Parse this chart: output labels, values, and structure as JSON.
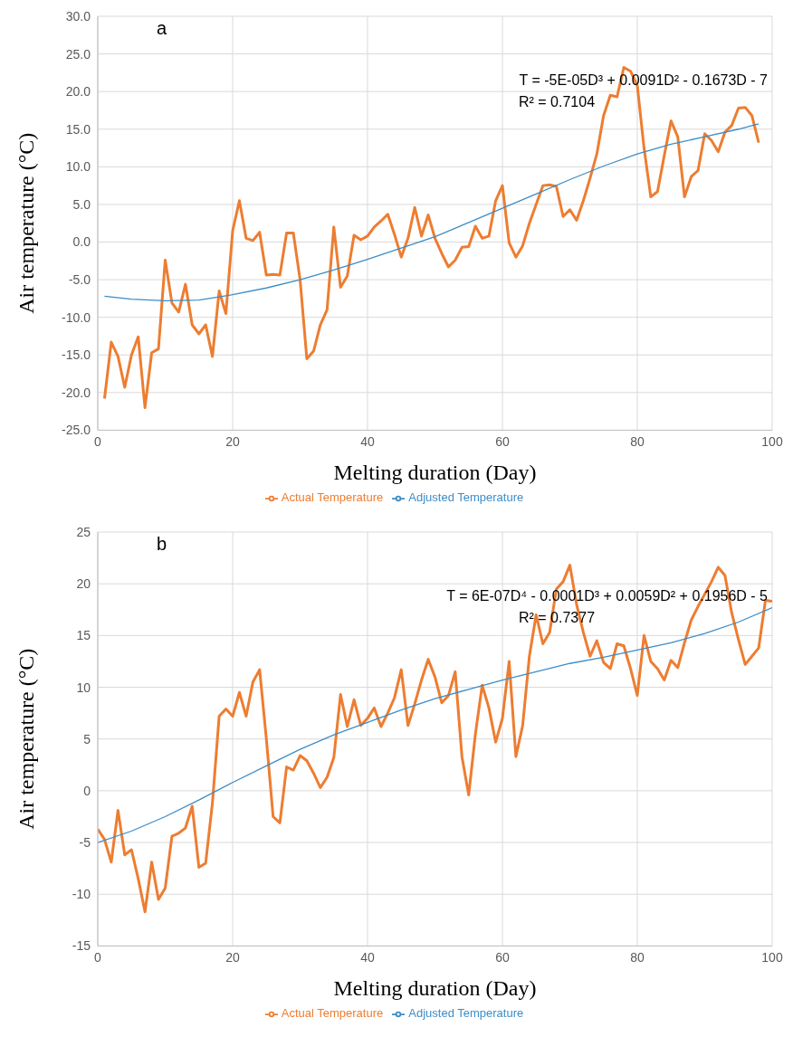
{
  "chart_data": [
    {
      "type": "line",
      "xlabel": "Melting duration (Day)",
      "ylabel": "Air temperature (°C)",
      "annotations": [
        "a",
        "T = -5E-05D³ + 0.0091D² - 0.1673D - 7",
        "R² = 0.7104"
      ],
      "xlim": [
        0,
        100
      ],
      "xticks": [
        0,
        20,
        40,
        60,
        80,
        100
      ],
      "ylim": [
        -25,
        30
      ],
      "yticks": [
        {
          "value": -25,
          "label": "-25.0"
        },
        {
          "value": -20,
          "label": "-20.0"
        },
        {
          "value": -15,
          "label": "-15.0"
        },
        {
          "value": -10,
          "label": "-10.0"
        },
        {
          "value": -5,
          "label": "-5.0"
        },
        {
          "value": 0,
          "label": "0.0"
        },
        {
          "value": 5,
          "label": "5.0"
        },
        {
          "value": 10,
          "label": "10.0"
        },
        {
          "value": 15,
          "label": "15.0"
        },
        {
          "value": 20,
          "label": "20.0"
        },
        {
          "value": 25,
          "label": "25.0"
        },
        {
          "value": 30,
          "label": "30.0"
        }
      ],
      "grid": true,
      "legend": "bottom",
      "marker": "none",
      "line_style": "solid",
      "series": [
        {
          "name": "Actual Temperature",
          "color": "#ed7d31",
          "x": [
            1,
            2,
            3,
            4,
            5,
            6,
            7,
            8,
            9,
            10,
            11,
            12,
            13,
            14,
            15,
            16,
            17,
            18,
            19,
            20,
            21,
            22,
            23,
            24,
            25,
            26,
            27,
            28,
            29,
            30,
            31,
            32,
            33,
            34,
            35,
            36,
            37,
            38,
            39,
            40,
            41,
            42,
            43,
            44,
            45,
            46,
            47,
            48,
            49,
            50,
            51,
            52,
            53,
            54,
            55,
            56,
            57,
            58,
            59,
            60,
            61,
            62,
            63,
            64,
            65,
            66,
            67,
            68,
            69,
            70,
            71,
            72,
            73,
            74,
            75,
            76,
            77,
            78,
            79,
            80,
            81,
            82,
            83,
            84,
            85,
            86,
            87,
            88,
            89,
            90,
            91,
            92,
            93,
            94,
            95,
            96,
            97,
            98
          ],
          "values": [
            -20.8,
            -13.3,
            -15.2,
            -19.3,
            -15.0,
            -12.6,
            -22.0,
            -14.7,
            -14.2,
            -2.4,
            -8.1,
            -9.3,
            -5.6,
            -11.0,
            -12.2,
            -11.0,
            -15.2,
            -6.5,
            -9.5,
            1.5,
            5.5,
            0.5,
            0.2,
            1.3,
            -4.4,
            -4.3,
            -4.4,
            1.2,
            1.2,
            -5.0,
            -15.5,
            -14.5,
            -11.0,
            -9.0,
            2.0,
            -6.0,
            -4.5,
            0.9,
            0.3,
            0.8,
            2.0,
            2.8,
            3.7,
            1.0,
            -2.0,
            0.5,
            4.6,
            0.8,
            3.6,
            0.5,
            -1.5,
            -3.3,
            -2.4,
            -0.7,
            -0.6,
            2.1,
            0.5,
            0.8,
            5.5,
            7.5,
            -0.1,
            -2.0,
            -0.5,
            2.5,
            5.0,
            7.5,
            7.6,
            7.4,
            3.4,
            4.3,
            2.9,
            5.5,
            8.5,
            11.7,
            16.8,
            19.5,
            19.3,
            23.2,
            22.7,
            20.8,
            12.5,
            6.0,
            6.7,
            11.5,
            16.1,
            14.0,
            6.0,
            8.7,
            9.5,
            14.4,
            13.5,
            12.0,
            14.6,
            15.5,
            17.8,
            17.9,
            16.8,
            13.2
          ]
        },
        {
          "name": "Adjusted Temperature",
          "color": "#3c8dc8",
          "x": [
            1,
            5,
            10,
            15,
            20,
            25,
            30,
            35,
            40,
            45,
            50,
            55,
            60,
            65,
            70,
            75,
            80,
            85,
            90,
            95,
            98
          ],
          "values": [
            -7.2,
            -7.6,
            -7.8,
            -7.7,
            -7.0,
            -6.1,
            -5.0,
            -3.7,
            -2.3,
            -0.8,
            0.7,
            2.6,
            4.5,
            6.4,
            8.3,
            10.1,
            11.7,
            13.0,
            14.0,
            15.0,
            15.7
          ]
        }
      ]
    },
    {
      "type": "line",
      "xlabel": "Melting duration (Day)",
      "ylabel": "Air temperature (°C)",
      "annotations": [
        "b",
        "T = 6E-07D⁴ - 0.0001D³ + 0.0059D² + 0.1956D - 5",
        "R² = 0.7377"
      ],
      "xlim": [
        0,
        100
      ],
      "xticks": [
        0,
        20,
        40,
        60,
        80,
        100
      ],
      "ylim": [
        -15,
        25
      ],
      "yticks": [
        -15,
        -10,
        -5,
        0,
        5,
        10,
        15,
        20,
        25
      ],
      "grid": true,
      "legend": "bottom",
      "marker": "none",
      "line_style": "solid",
      "series": [
        {
          "name": "Actual Temperature",
          "color": "#ed7d31",
          "x": [
            0,
            1,
            2,
            3,
            4,
            5,
            6,
            7,
            8,
            9,
            10,
            11,
            12,
            13,
            14,
            15,
            16,
            17,
            18,
            19,
            20,
            21,
            22,
            23,
            24,
            25,
            26,
            27,
            28,
            29,
            30,
            31,
            32,
            33,
            34,
            35,
            36,
            37,
            38,
            39,
            40,
            41,
            42,
            43,
            44,
            45,
            46,
            47,
            48,
            49,
            50,
            51,
            52,
            53,
            54,
            55,
            56,
            57,
            58,
            59,
            60,
            61,
            62,
            63,
            64,
            65,
            66,
            67,
            68,
            69,
            70,
            71,
            72,
            73,
            74,
            75,
            76,
            77,
            78,
            79,
            80,
            81,
            82,
            83,
            84,
            85,
            86,
            87,
            88,
            89,
            90,
            91,
            92,
            93,
            94,
            95,
            96,
            97,
            98,
            99,
            100
          ],
          "values": [
            -3.7,
            -4.7,
            -6.9,
            -1.9,
            -6.2,
            -5.7,
            -8.5,
            -11.7,
            -6.9,
            -10.5,
            -9.4,
            -4.4,
            -4.1,
            -3.6,
            -1.5,
            -7.4,
            -7.0,
            -1.2,
            7.2,
            7.9,
            7.2,
            9.5,
            7.2,
            10.5,
            11.7,
            5.0,
            -2.5,
            -3.1,
            2.3,
            2.0,
            3.4,
            2.9,
            1.7,
            0.3,
            1.3,
            3.2,
            9.3,
            6.2,
            8.8,
            6.3,
            7.0,
            8.0,
            6.2,
            7.5,
            9.0,
            11.7,
            6.3,
            8.4,
            10.7,
            12.7,
            11.0,
            8.5,
            9.2,
            11.5,
            3.3,
            -0.4,
            5.5,
            10.2,
            8.0,
            4.7,
            7.0,
            12.5,
            3.3,
            6.3,
            13.0,
            17.0,
            14.2,
            15.3,
            19.5,
            20.2,
            21.8,
            18.0,
            15.3,
            13.0,
            14.5,
            12.4,
            11.8,
            14.2,
            14.0,
            11.8,
            9.2,
            15.0,
            12.5,
            11.8,
            10.7,
            12.6,
            11.9,
            14.3,
            16.5,
            17.8,
            19.0,
            20.2,
            21.6,
            20.8,
            17.2,
            14.6,
            12.2,
            13.0,
            13.8,
            18.4,
            18.3
          ]
        },
        {
          "name": "Adjusted Temperature",
          "color": "#3c8dc8",
          "x": [
            0,
            5,
            10,
            15,
            20,
            25,
            30,
            35,
            40,
            45,
            50,
            55,
            60,
            65,
            70,
            75,
            80,
            85,
            90,
            95,
            100
          ],
          "values": [
            -5.0,
            -3.9,
            -2.5,
            -0.9,
            0.8,
            2.4,
            4.0,
            5.4,
            6.6,
            7.8,
            8.9,
            9.8,
            10.7,
            11.5,
            12.3,
            12.9,
            13.6,
            14.3,
            15.2,
            16.3,
            17.7
          ]
        }
      ]
    }
  ]
}
